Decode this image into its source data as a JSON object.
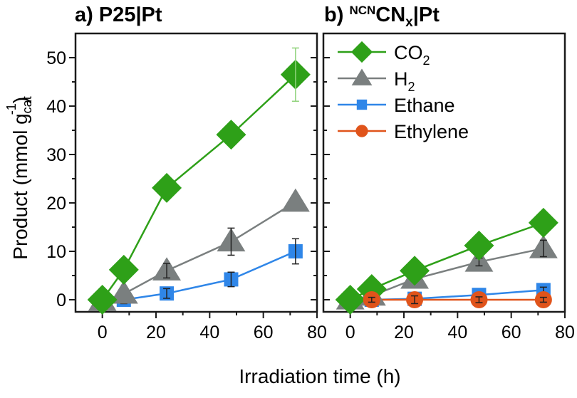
{
  "colors": {
    "CO2": "#2ea018",
    "H2": "#7a7f7f",
    "Ethane": "#2f86e8",
    "Ethylene": "#e0541b",
    "axis": "#1a1a1a"
  },
  "chart_data": [
    {
      "type": "line",
      "title": "a) P25|Pt",
      "xlabel": "Irradiation time (h)",
      "ylabel": "Product (mmol g_cat^-1)",
      "xlim": [
        -10,
        80
      ],
      "ylim": [
        -2.5,
        55
      ],
      "xticks": [
        "0",
        "20",
        "40",
        "60",
        "80"
      ],
      "yticks": [
        "0",
        "10",
        "20",
        "30",
        "40",
        "50"
      ],
      "series": [
        {
          "name": "Ethane",
          "marker": "square",
          "x": [
            0,
            8,
            24,
            48,
            72
          ],
          "y": [
            0,
            0,
            1.3,
            4.2,
            10
          ],
          "err": [
            0,
            0.8,
            1.0,
            1.5,
            2.6
          ]
        },
        {
          "name": "H2",
          "marker": "triangle",
          "x": [
            0,
            8,
            24,
            48,
            72
          ],
          "y": [
            -0.3,
            1.2,
            6,
            12,
            20.2
          ],
          "err": [
            0,
            0,
            1.5,
            2.8,
            0
          ]
        },
        {
          "name": "CO2",
          "marker": "diamond",
          "x": [
            0,
            8,
            24,
            48,
            72
          ],
          "y": [
            0,
            6.2,
            23.1,
            34.1,
            46.5
          ],
          "err": [
            0,
            0,
            0,
            0,
            5.5
          ]
        }
      ]
    },
    {
      "type": "line",
      "title": "b) NCNCNx|Pt",
      "title_parts": {
        "prefix": "b) ",
        "sup": "NCN",
        "main": "CN",
        "sub": "x",
        "suffix": "|Pt"
      },
      "xlabel": "Irradiation time (h)",
      "xlim": [
        -10,
        80
      ],
      "ylim": [
        -2.5,
        55
      ],
      "xticks": [
        "0",
        "20",
        "40",
        "60",
        "80"
      ],
      "legend": {
        "placement": "top-left",
        "entries": [
          {
            "name": "CO2",
            "label": "CO",
            "sub": "2"
          },
          {
            "name": "H2",
            "label": "H",
            "sub": "2"
          },
          {
            "name": "Ethane",
            "label": "Ethane",
            "sub": ""
          },
          {
            "name": "Ethylene",
            "label": "Ethylene",
            "sub": ""
          }
        ]
      },
      "series": [
        {
          "name": "Ethane",
          "marker": "square",
          "x": [
            0,
            8,
            24,
            48,
            72
          ],
          "y": [
            0,
            0,
            0.2,
            1.0,
            2.0
          ],
          "err": [
            0,
            0,
            0,
            0.5,
            0.6
          ]
        },
        {
          "name": "H2",
          "marker": "triangle",
          "x": [
            0,
            8,
            24,
            48,
            72
          ],
          "y": [
            0,
            0.8,
            4.3,
            7.8,
            10.6
          ],
          "err": [
            0,
            0,
            0.5,
            0.8,
            1.7
          ]
        },
        {
          "name": "CO2",
          "marker": "diamond",
          "x": [
            0,
            8,
            24,
            48,
            72
          ],
          "y": [
            0,
            2.2,
            6.0,
            11.2,
            15.9
          ],
          "err": [
            0,
            0,
            0,
            0,
            0
          ]
        },
        {
          "name": "Ethylene",
          "marker": "circle",
          "x": [
            8,
            24,
            48,
            72
          ],
          "y": [
            0,
            0,
            0,
            0
          ],
          "err": [
            0.5,
            0.8,
            0.6,
            0.5
          ]
        }
      ]
    }
  ],
  "ylabel_parts": {
    "main": "Product (mmol g",
    "sup": "-1",
    "sub": "cat",
    "close": ")"
  }
}
